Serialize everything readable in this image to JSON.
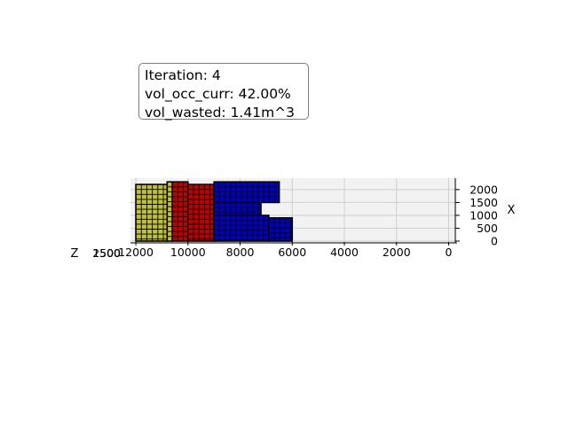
{
  "info_box": {
    "iteration": "Iteration: 4",
    "vol_occ": "vol_occ_curr: 42.00%",
    "vol_wasted": "vol_wasted: 1.41m^3"
  },
  "chart_data": {
    "type": "3d-bar",
    "view": "3D container packing view, X-Y plane seen from the top",
    "title": "",
    "axes": {
      "y": {
        "label": "",
        "reversed": true,
        "range": [
          0,
          12200
        ],
        "ticks": [
          12000,
          10000,
          8000,
          6000,
          4000,
          2000,
          0
        ]
      },
      "x": {
        "label": "X",
        "range": [
          0,
          2400
        ],
        "ticks": [
          0,
          500,
          1000,
          1500,
          2000
        ]
      },
      "z": {
        "label": "Z",
        "ticks": [
          "2500",
          "1500",
          "500"
        ]
      }
    },
    "grid": true,
    "pane_color": "#f2f2f2",
    "boxes": [
      {
        "color": "#bfbf3f",
        "y0": 10800,
        "y1": 12000,
        "x0": 0,
        "x1": 2200
      },
      {
        "color": "#bfbf3f",
        "y0": 10600,
        "y1": 10800,
        "x0": 0,
        "x1": 2300
      },
      {
        "color": "#c00000",
        "y0": 10000,
        "y1": 10600,
        "x0": 0,
        "x1": 2300
      },
      {
        "color": "#c00000",
        "y0": 9000,
        "y1": 10000,
        "x0": 0,
        "x1": 2200
      },
      {
        "color": "#0000bf",
        "y0": 6500,
        "y1": 9000,
        "x0": 1500,
        "x1": 2300
      },
      {
        "color": "#0000bf",
        "y0": 7200,
        "y1": 9000,
        "x0": 1000,
        "x1": 1500
      },
      {
        "color": "#0000bf",
        "y0": 6900,
        "y1": 9000,
        "x0": 0,
        "x1": 1000
      },
      {
        "color": "#0000bf",
        "y0": 6000,
        "y1": 6900,
        "x0": 0,
        "x1": 900
      }
    ]
  }
}
